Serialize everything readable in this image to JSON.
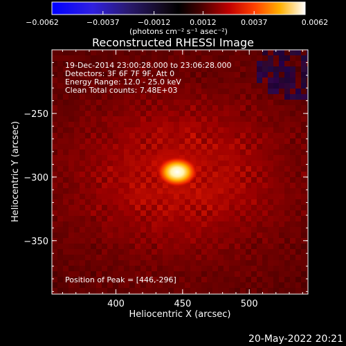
{
  "chart_data": {
    "type": "heatmap",
    "title": "Reconstructed RHESSI Image",
    "xlabel": "Heliocentric X (arcsec)",
    "ylabel": "Heliocentric Y (arcsec)",
    "xlim": [
      352,
      544
    ],
    "ylim": [
      -392,
      -200
    ],
    "x_ticks": [
      400,
      450,
      500
    ],
    "y_ticks": [
      -250,
      -300,
      -350
    ],
    "colorbar": {
      "range": [
        -0.0062,
        0.0062
      ],
      "ticks": [
        -0.0062,
        -0.0037,
        -0.0012,
        0.0012,
        0.0037,
        0.0062
      ],
      "tick_labels": [
        "−0.0062",
        "−0.0037",
        "−0.0012",
        "0.0012",
        "0.0037",
        "0.0062"
      ],
      "unit_label": "(photons cm⁻² s⁻¹ asec⁻²)"
    },
    "peak": {
      "x": 446,
      "y": -296,
      "value": 0.0062
    },
    "info_lines": [
      "19-Dec-2014 23:00:28.000 to 23:06:28.000",
      "Detectors: 3F 6F 7F 9F, Att 0",
      "Energy Range: 12.0 - 25.0 keV",
      "Clean     Total counts: 7.48E+03"
    ],
    "peak_text": "Position of Peak = [446,-296]",
    "grid": false,
    "legend": "none"
  },
  "footer": {
    "timestamp": "20-May-2022 20:21"
  }
}
